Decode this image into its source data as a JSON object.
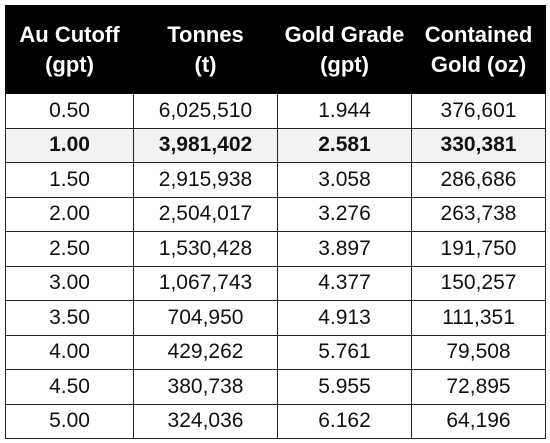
{
  "table": {
    "headers": [
      {
        "line1": "Au Cutoff",
        "line2": "(gpt)"
      },
      {
        "line1": "Tonnes",
        "line2": "(t)"
      },
      {
        "line1": "Gold Grade",
        "line2": "(gpt)"
      },
      {
        "line1": "Contained",
        "line2": "Gold (oz)"
      }
    ],
    "rows": [
      [
        "0.50",
        "6,025,510",
        "1.944",
        "376,601"
      ],
      [
        "1.00",
        "3,981,402",
        "2.581",
        "330,381"
      ],
      [
        "1.50",
        "2,915,938",
        "3.058",
        "286,686"
      ],
      [
        "2.00",
        "2,504,017",
        "3.276",
        "263,738"
      ],
      [
        "2.50",
        "1,530,428",
        "3.897",
        "191,750"
      ],
      [
        "3.00",
        "1,067,743",
        "4.377",
        "150,257"
      ],
      [
        "3.50",
        "704,950",
        "4.913",
        "111,351"
      ],
      [
        "4.00",
        "429,262",
        "5.761",
        "79,508"
      ],
      [
        "4.50",
        "380,738",
        "5.955",
        "72,895"
      ],
      [
        "5.00",
        "324,036",
        "6.162",
        "64,196"
      ]
    ],
    "highlighted_row_index": 1
  },
  "colors": {
    "header_bg": "#000000",
    "header_text": "#ffffff",
    "highlight_bg": "#f2f2f2",
    "border": "#222222"
  }
}
